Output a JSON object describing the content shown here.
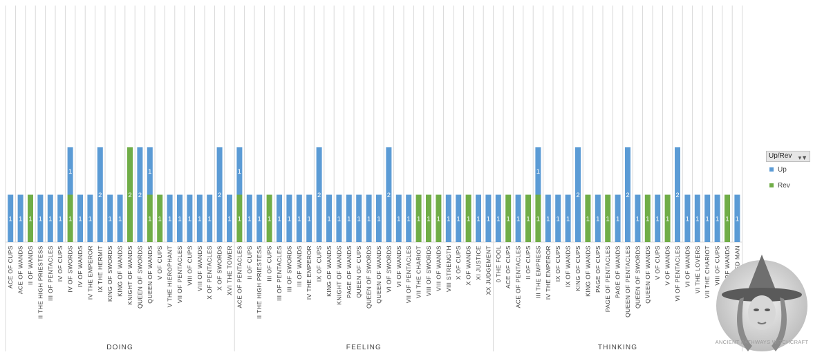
{
  "colors": {
    "up": "#5b9bd5",
    "rev": "#70ad47",
    "grid": "#d9d9d9",
    "text": "#404040",
    "label": "#ffffff"
  },
  "legend": {
    "title": "Up/Rev",
    "items": [
      "Up",
      "Rev"
    ]
  },
  "watermark": {
    "text": "ANCIENT PATHWAYS WITCHCRAFT",
    "icon": "witch-portrait-icon"
  },
  "chart_data": {
    "type": "bar",
    "stacked": true,
    "ylim": [
      0,
      4
    ],
    "grid": "vertical",
    "legend_position": "right",
    "groups": [
      {
        "name": "DOING",
        "start": 0,
        "count": 23
      },
      {
        "name": "FEELING",
        "start": 23,
        "count": 26
      },
      {
        "name": "THINKING",
        "start": 49,
        "count": 25
      }
    ],
    "categories": [
      "ACE OF CUPS",
      "ACE OF WANDS",
      "II OF WANDS",
      "II THE HIGH PRIESTESS",
      "III OF PENTACLES",
      "IV OF CUPS",
      "IV OF SWORDS",
      "IV OF WANDS",
      "IV THE EMPEROR",
      "IX THE HERMIT",
      "KING OF SWORDS",
      "KING OF WANDS",
      "KNIGHT OF WANDS",
      "QUEEN OF SWORDS",
      "QUEEN OF WANDS",
      "V OF CUPS",
      "V THE HIEROPHANT",
      "VII OF PENTACLES",
      "VIII OF CUPS",
      "VIII OF WANDS",
      "X OF PENTACLES",
      "X OF SWORDS",
      "XVI THE TOWER",
      "ACE OF PENTACLES",
      "II OF CUPS",
      "II THE HIGH PRIESTESS",
      "III OF CUPS",
      "III OF PENTACLES",
      "III OF SWORDS",
      "III OF WANDS",
      "IV THE EMPEROR",
      "IX OF CUPS",
      "KING OF WANDS",
      "KNIGHT OF WANDS",
      "PAGE OF WANDS",
      "QUEEN OF CUPS",
      "QUEEN OF SWORDS",
      "QUEEN OF WANDS",
      "VI OF SWORDS",
      "VI OF WANDS",
      "VII OF PENTACLES",
      "VII THE CHARIOT",
      "VIII OF SWORDS",
      "VIII OF WANDS",
      "VIII STRENGTH",
      "X OF CUPS",
      "X OF WANDS",
      "XI JUSTICE",
      "XX JUDGEMENT",
      "0 THE FOOL",
      "ACE OF CUPS",
      "ACE OF PENTACLES",
      "II OF CUPS",
      "III THE EMPRESS",
      "IV THE EMPEROR",
      "IX OF CUPS",
      "IX OF WANDS",
      "KING OF CUPS",
      "KING OF WANDS",
      "PAGE OF CUPS",
      "PAGE OF PENTACLES",
      "PAGE OF WANDS",
      "QUEEN OF PENTACLES",
      "QUEEN OF SWORDS",
      "QUEEN OF WANDS",
      "V OF CUPS",
      "V OF WANDS",
      "VI OF PENTACLES",
      "VI OF WANDS",
      "VI THE LOVERS",
      "VII THE CHARIOT",
      "VIII OF CUPS",
      "VIII OF WANDS",
      "XII THE HANGED MAN"
    ],
    "series": [
      {
        "name": "Rev",
        "values": [
          0,
          0,
          1,
          0,
          0,
          0,
          1,
          0,
          0,
          0,
          0,
          0,
          2,
          0,
          1,
          1,
          0,
          0,
          0,
          0,
          0,
          0,
          0,
          1,
          0,
          0,
          1,
          0,
          0,
          0,
          0,
          0,
          0,
          0,
          0,
          0,
          0,
          0,
          0,
          0,
          0,
          1,
          1,
          1,
          0,
          0,
          1,
          0,
          0,
          0,
          1,
          0,
          1,
          1,
          0,
          0,
          0,
          0,
          1,
          0,
          1,
          0,
          0,
          0,
          1,
          0,
          1,
          0,
          0,
          0,
          0,
          0,
          1,
          0
        ]
      },
      {
        "name": "Up",
        "values": [
          1,
          1,
          0,
          1,
          1,
          1,
          1,
          1,
          1,
          2,
          1,
          1,
          0,
          2,
          1,
          0,
          1,
          1,
          1,
          1,
          1,
          2,
          1,
          1,
          1,
          1,
          0,
          1,
          1,
          1,
          1,
          2,
          1,
          1,
          1,
          1,
          1,
          1,
          2,
          1,
          1,
          0,
          0,
          0,
          1,
          1,
          0,
          1,
          1,
          1,
          0,
          1,
          0,
          1,
          1,
          1,
          1,
          2,
          0,
          1,
          0,
          1,
          2,
          1,
          0,
          1,
          0,
          2,
          1,
          1,
          1,
          1,
          0,
          1
        ]
      }
    ]
  }
}
